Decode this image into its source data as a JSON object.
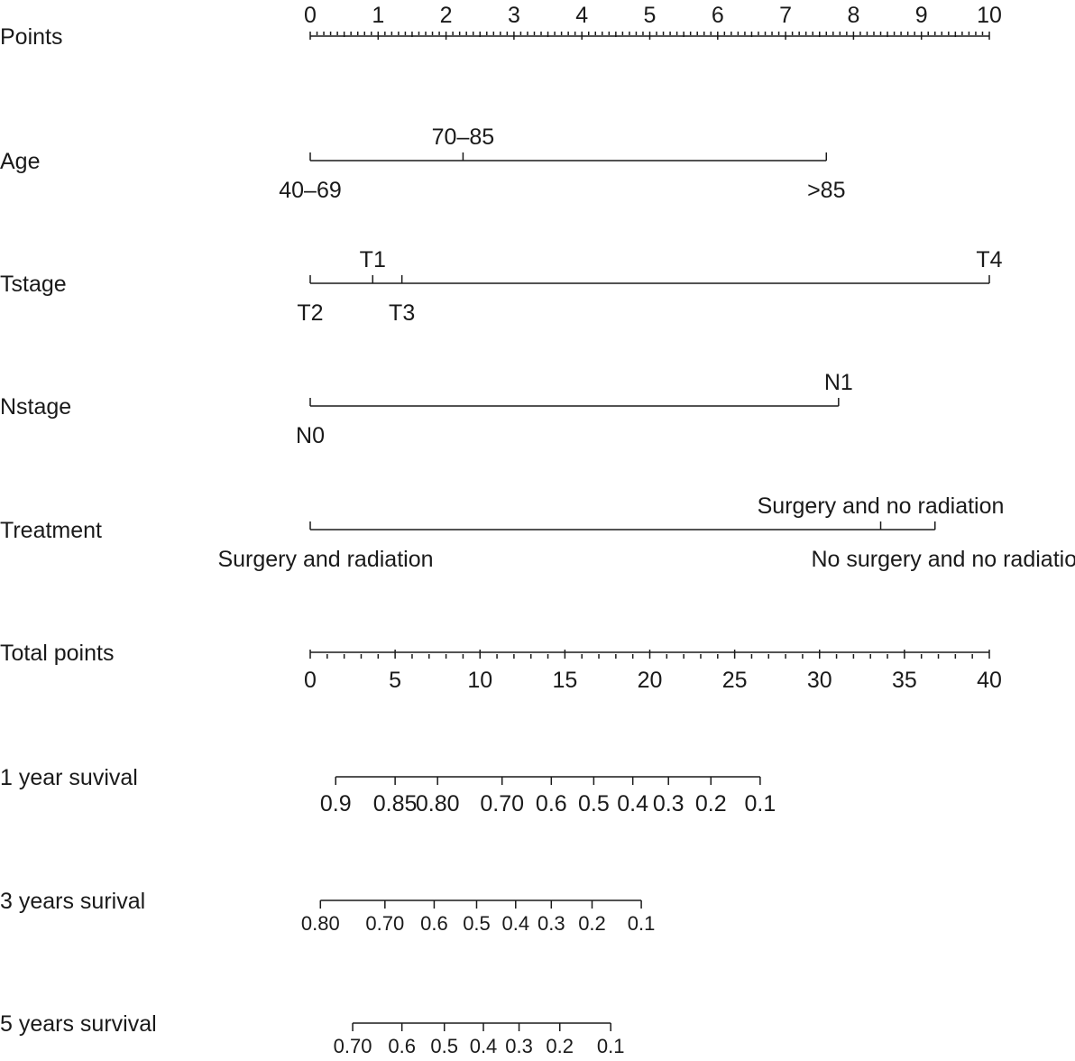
{
  "chart_data": {
    "type": "nomogram",
    "rows": [
      {
        "name": "Points",
        "kind": "scale",
        "range": [
          0,
          10
        ],
        "labels": [
          "0",
          "1",
          "2",
          "3",
          "4",
          "5",
          "6",
          "7",
          "8",
          "9",
          "10"
        ],
        "minor_step": 0.1
      },
      {
        "name": "Age",
        "kind": "categorical",
        "levels": [
          {
            "label": "40–69",
            "points": 0,
            "side": "below"
          },
          {
            "label": "70–85",
            "points": 2.25,
            "side": "above"
          },
          {
            "label": ">85",
            "points": 7.6,
            "side": "below"
          }
        ]
      },
      {
        "name": "Tstage",
        "kind": "categorical",
        "levels": [
          {
            "label": "T2",
            "points": 0,
            "side": "below"
          },
          {
            "label": "T1",
            "points": 0.92,
            "side": "above"
          },
          {
            "label": "T3",
            "points": 1.35,
            "side": "below"
          },
          {
            "label": "T4",
            "points": 10,
            "side": "above"
          }
        ]
      },
      {
        "name": "Nstage",
        "kind": "categorical",
        "levels": [
          {
            "label": "N0",
            "points": 0,
            "side": "below"
          },
          {
            "label": "N1",
            "points": 7.78,
            "side": "above"
          }
        ]
      },
      {
        "name": "Treatment",
        "kind": "categorical",
        "levels": [
          {
            "label": "Surgery and radiation",
            "points": 0,
            "side": "below"
          },
          {
            "label": "Surgery and no radiation",
            "points": 8.4,
            "side": "above"
          },
          {
            "label": "No surgery and no radiation",
            "points": 9.2,
            "side": "below"
          }
        ]
      },
      {
        "name": "Total points",
        "kind": "scale",
        "range": [
          0,
          40
        ],
        "labels": [
          "0",
          "5",
          "10",
          "15",
          "20",
          "25",
          "30",
          "35",
          "40"
        ],
        "minor_step": 1
      },
      {
        "name": "1 year suvival",
        "kind": "survival",
        "ticks": [
          {
            "label": "0.9",
            "total_points": 1.5
          },
          {
            "label": "0.85",
            "total_points": 5.0
          },
          {
            "label": "0.80",
            "total_points": 7.5
          },
          {
            "label": "0.70",
            "total_points": 11.3
          },
          {
            "label": "0.6",
            "total_points": 14.2
          },
          {
            "label": "0.5",
            "total_points": 16.7
          },
          {
            "label": "0.4",
            "total_points": 19.0
          },
          {
            "label": "0.3",
            "total_points": 21.1
          },
          {
            "label": "0.2",
            "total_points": 23.6
          },
          {
            "label": "0.1",
            "total_points": 26.5
          }
        ]
      },
      {
        "name": "3 years surival",
        "kind": "survival",
        "ticks": [
          {
            "label": "0.80",
            "total_points": 0.6
          },
          {
            "label": "0.70",
            "total_points": 4.4
          },
          {
            "label": "0.6",
            "total_points": 7.3
          },
          {
            "label": "0.5",
            "total_points": 9.8
          },
          {
            "label": "0.4",
            "total_points": 12.1
          },
          {
            "label": "0.3",
            "total_points": 14.2
          },
          {
            "label": "0.2",
            "total_points": 16.6
          },
          {
            "label": "0.1",
            "total_points": 19.5
          }
        ]
      },
      {
        "name": "5 years survival",
        "kind": "survival",
        "ticks": [
          {
            "label": "0.70",
            "total_points": 2.5
          },
          {
            "label": "0.6",
            "total_points": 5.4
          },
          {
            "label": "0.5",
            "total_points": 7.9
          },
          {
            "label": "0.4",
            "total_points": 10.2
          },
          {
            "label": "0.3",
            "total_points": 12.3
          },
          {
            "label": "0.2",
            "total_points": 14.7
          },
          {
            "label": "0.1",
            "total_points": 17.7
          }
        ]
      }
    ]
  }
}
